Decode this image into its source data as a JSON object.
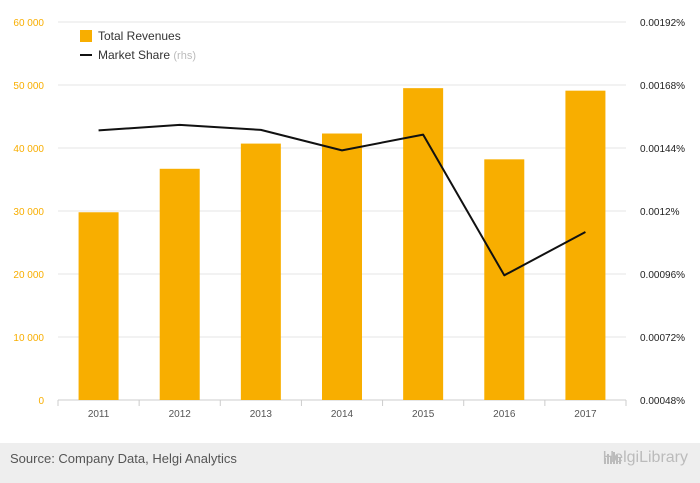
{
  "chart_data": {
    "type": "bar",
    "categories": [
      "2011",
      "2012",
      "2013",
      "2014",
      "2015",
      "2016",
      "2017"
    ],
    "series": [
      {
        "name": "Total Revenues",
        "type": "bar",
        "axis": "left",
        "color": "#f8ae00",
        "values": [
          29800,
          36700,
          40700,
          42300,
          49500,
          38200,
          49100
        ]
      },
      {
        "name": "Market Share",
        "name_suffix": "(rhs)",
        "type": "line",
        "axis": "right",
        "color": "#111111",
        "values": [
          0.001507,
          0.001528,
          0.001509,
          0.001431,
          0.001491,
          0.000955,
          0.00112
        ]
      }
    ],
    "y_left": {
      "ylim": [
        0,
        60000
      ],
      "ticks": [
        0,
        10000,
        20000,
        30000,
        40000,
        50000,
        60000
      ],
      "tick_labels": [
        "0",
        "10 000",
        "20 000",
        "30 000",
        "40 000",
        "50 000",
        "60 000"
      ],
      "color": "#f8ae00"
    },
    "y_right": {
      "ylim": [
        0.00048,
        0.00192
      ],
      "ticks": [
        0.00048,
        0.00072,
        0.00096,
        0.0012,
        0.00144,
        0.00168,
        0.00192
      ],
      "tick_labels": [
        "0.00048%",
        "0.00072%",
        "0.00096%",
        "0.0012%",
        "0.00144%",
        "0.00168%",
        "0.00192%"
      ]
    },
    "legend_position": "top-left",
    "grid": true
  },
  "footer": {
    "source": "Source: Company Data, Helgi Analytics",
    "brand": "HelgiLibrary"
  }
}
